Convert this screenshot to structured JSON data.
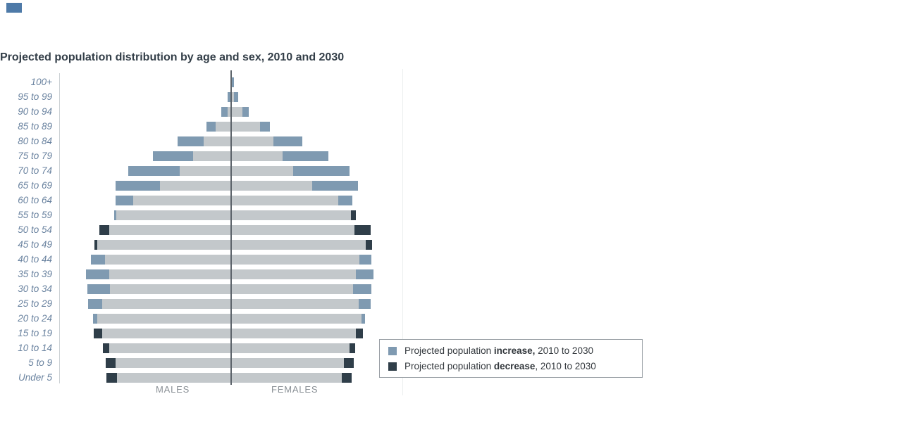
{
  "title": "Projected population distribution by age and sex, 2010 and 2030",
  "colors": {
    "increase": "#7f9ab1",
    "decrease": "#2f3e49",
    "overlap": "#c3c8cb",
    "age_label": "#69829f",
    "axis_label": "#8a9096",
    "title_text": "#333e48",
    "center_line": "#5d646b",
    "left_line": "#ccd1d4",
    "right_line": "#eceeef",
    "marker_blue": "#4e7aa8"
  },
  "axis": {
    "males_label": "MALES",
    "females_label": "FEMALES"
  },
  "legend": {
    "items": [
      {
        "swatch": "increase",
        "prefix": "Projected population ",
        "bold": "increase,",
        "suffix": " 2010 to 2030"
      },
      {
        "swatch": "decrease",
        "prefix": "Projected population ",
        "bold": "decrease",
        "suffix": ", 2010 to 2030"
      }
    ]
  },
  "chart_data": {
    "type": "bar",
    "subtype": "population_pyramid",
    "orientation": "horizontal",
    "title": "Projected population distribution by age and sex, 2010 and 2030",
    "legend_position": "bottom-right",
    "axis_labels": [
      "MALES",
      "FEMALES"
    ],
    "units": "bar lengths in screen px; no numeric axis shown in image",
    "categories": [
      "100+",
      "95 to 99",
      "90 to 94",
      "85 to 89",
      "80 to 84",
      "75 to 79",
      "70 to 74",
      "65 to 69",
      "60 to 64",
      "55 to 59",
      "50 to 54",
      "45 to 49",
      "40 to 44",
      "35 to 39",
      "30 to 34",
      "25 to 29",
      "20 to 24",
      "15 to 19",
      "10 to 14",
      "5 to 9",
      "Under 5"
    ],
    "rows": [
      {
        "age": "100+",
        "male": {
          "overlap": 1,
          "change": 0,
          "change_type": "none"
        },
        "female": {
          "overlap": 1,
          "change": 3,
          "change_type": "increase"
        }
      },
      {
        "age": "95 to 99",
        "male": {
          "overlap": 1,
          "change": 4,
          "change_type": "increase"
        },
        "female": {
          "overlap": 4,
          "change": 6,
          "change_type": "increase"
        }
      },
      {
        "age": "90 to 94",
        "male": {
          "overlap": 5,
          "change": 9,
          "change_type": "increase"
        },
        "female": {
          "overlap": 16,
          "change": 9,
          "change_type": "increase"
        }
      },
      {
        "age": "85 to 89",
        "male": {
          "overlap": 22,
          "change": 13,
          "change_type": "increase"
        },
        "female": {
          "overlap": 41,
          "change": 14,
          "change_type": "increase"
        }
      },
      {
        "age": "80 to 84",
        "male": {
          "overlap": 39,
          "change": 37,
          "change_type": "increase"
        },
        "female": {
          "overlap": 60,
          "change": 41,
          "change_type": "increase"
        }
      },
      {
        "age": "75 to 79",
        "male": {
          "overlap": 54,
          "change": 57,
          "change_type": "increase"
        },
        "female": {
          "overlap": 73,
          "change": 65,
          "change_type": "increase"
        }
      },
      {
        "age": "70 to 74",
        "male": {
          "overlap": 73,
          "change": 73,
          "change_type": "increase"
        },
        "female": {
          "overlap": 88,
          "change": 80,
          "change_type": "increase"
        }
      },
      {
        "age": "65 to 69",
        "male": {
          "overlap": 101,
          "change": 63,
          "change_type": "increase"
        },
        "female": {
          "overlap": 115,
          "change": 65,
          "change_type": "increase"
        }
      },
      {
        "age": "60 to 64",
        "male": {
          "overlap": 139,
          "change": 25,
          "change_type": "increase"
        },
        "female": {
          "overlap": 152,
          "change": 20,
          "change_type": "increase"
        }
      },
      {
        "age": "55 to 59",
        "male": {
          "overlap": 163,
          "change": 3,
          "change_type": "increase"
        },
        "female": {
          "overlap": 170,
          "change": 7,
          "change_type": "decrease"
        }
      },
      {
        "age": "50 to 54",
        "male": {
          "overlap": 173,
          "change": 14,
          "change_type": "decrease"
        },
        "female": {
          "overlap": 175,
          "change": 23,
          "change_type": "decrease"
        }
      },
      {
        "age": "45 to 49",
        "male": {
          "overlap": 190,
          "change": 4,
          "change_type": "decrease"
        },
        "female": {
          "overlap": 191,
          "change": 9,
          "change_type": "decrease"
        }
      },
      {
        "age": "40 to 44",
        "male": {
          "overlap": 179,
          "change": 20,
          "change_type": "increase"
        },
        "female": {
          "overlap": 182,
          "change": 17,
          "change_type": "increase"
        }
      },
      {
        "age": "35 to 39",
        "male": {
          "overlap": 173,
          "change": 33,
          "change_type": "increase"
        },
        "female": {
          "overlap": 177,
          "change": 25,
          "change_type": "increase"
        }
      },
      {
        "age": "30 to 34",
        "male": {
          "overlap": 172,
          "change": 32,
          "change_type": "increase"
        },
        "female": {
          "overlap": 173,
          "change": 26,
          "change_type": "increase"
        }
      },
      {
        "age": "25 to 29",
        "male": {
          "overlap": 183,
          "change": 20,
          "change_type": "increase"
        },
        "female": {
          "overlap": 181,
          "change": 17,
          "change_type": "increase"
        }
      },
      {
        "age": "20 to 24",
        "male": {
          "overlap": 190,
          "change": 6,
          "change_type": "increase"
        },
        "female": {
          "overlap": 185,
          "change": 5,
          "change_type": "increase"
        }
      },
      {
        "age": "15 to 19",
        "male": {
          "overlap": 183,
          "change": 12,
          "change_type": "decrease"
        },
        "female": {
          "overlap": 177,
          "change": 10,
          "change_type": "decrease"
        }
      },
      {
        "age": "10 to 14",
        "male": {
          "overlap": 173,
          "change": 9,
          "change_type": "decrease"
        },
        "female": {
          "overlap": 168,
          "change": 8,
          "change_type": "decrease"
        }
      },
      {
        "age": "5 to 9",
        "male": {
          "overlap": 164,
          "change": 14,
          "change_type": "decrease"
        },
        "female": {
          "overlap": 160,
          "change": 14,
          "change_type": "decrease"
        }
      },
      {
        "age": "Under 5",
        "male": {
          "overlap": 162,
          "change": 15,
          "change_type": "decrease"
        },
        "female": {
          "overlap": 157,
          "change": 14,
          "change_type": "decrease"
        }
      }
    ]
  }
}
